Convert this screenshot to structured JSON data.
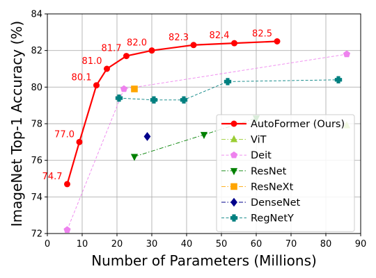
{
  "chart_data": {
    "type": "line",
    "xlabel": "Number of Parameters (Millions)",
    "ylabel": "ImageNet Top-1 Accuracy (%)",
    "xlim": [
      0,
      90
    ],
    "ylim": [
      72,
      84
    ],
    "xticks": [
      "0",
      "10",
      "20",
      "30",
      "40",
      "50",
      "60",
      "70",
      "80",
      "90"
    ],
    "yticks": [
      "72",
      "74",
      "76",
      "78",
      "80",
      "82",
      "84"
    ],
    "grid": true,
    "legend_position": "bottom-right",
    "series": [
      {
        "name": "AutoFormer (Ours)",
        "color": "#ff0000",
        "marker": "circle",
        "line": "solid",
        "points": [
          [
            5.7,
            74.7
          ],
          [
            9.2,
            77.0
          ],
          [
            14.1,
            80.1
          ],
          [
            17.1,
            81.0
          ],
          [
            22.7,
            81.7
          ],
          [
            30.0,
            82.0
          ],
          [
            42.0,
            82.3
          ],
          [
            53.7,
            82.4
          ],
          [
            66.0,
            82.5
          ]
        ],
        "labels": [
          "74.7",
          "77.0",
          "80.1",
          "81.0",
          "81.7",
          "82.0",
          "82.3",
          "82.4",
          "82.5"
        ]
      },
      {
        "name": "ViT",
        "color": "#9acd32",
        "marker": "triangle-up",
        "line": "dashdot",
        "points": [
          [
            86.0,
            77.9
          ]
        ]
      },
      {
        "name": "Deit",
        "color": "#ee82ee",
        "marker": "pentagon",
        "line": "dashed",
        "points": [
          [
            5.7,
            72.2
          ],
          [
            22.0,
            79.9
          ],
          [
            86.0,
            81.8
          ]
        ]
      },
      {
        "name": "ResNet",
        "color": "#008000",
        "marker": "triangle-down",
        "line": "dashdot",
        "points": [
          [
            25.0,
            76.2
          ],
          [
            45.0,
            77.4
          ],
          [
            60.0,
            78.3
          ]
        ]
      },
      {
        "name": "ResNeXt",
        "color": "#ffa500",
        "marker": "square",
        "line": "dashdot",
        "points": [
          [
            25.0,
            79.9
          ]
        ]
      },
      {
        "name": "DenseNet",
        "color": "#00008b",
        "marker": "diamond",
        "line": "dashdot",
        "points": [
          [
            28.7,
            77.3
          ]
        ]
      },
      {
        "name": "RegNetY",
        "color": "#008080",
        "marker": "plus",
        "line": "dashed",
        "points": [
          [
            20.6,
            79.4
          ],
          [
            30.6,
            79.3
          ],
          [
            39.2,
            79.3
          ],
          [
            51.8,
            80.3
          ],
          [
            83.6,
            80.4
          ]
        ]
      }
    ]
  }
}
